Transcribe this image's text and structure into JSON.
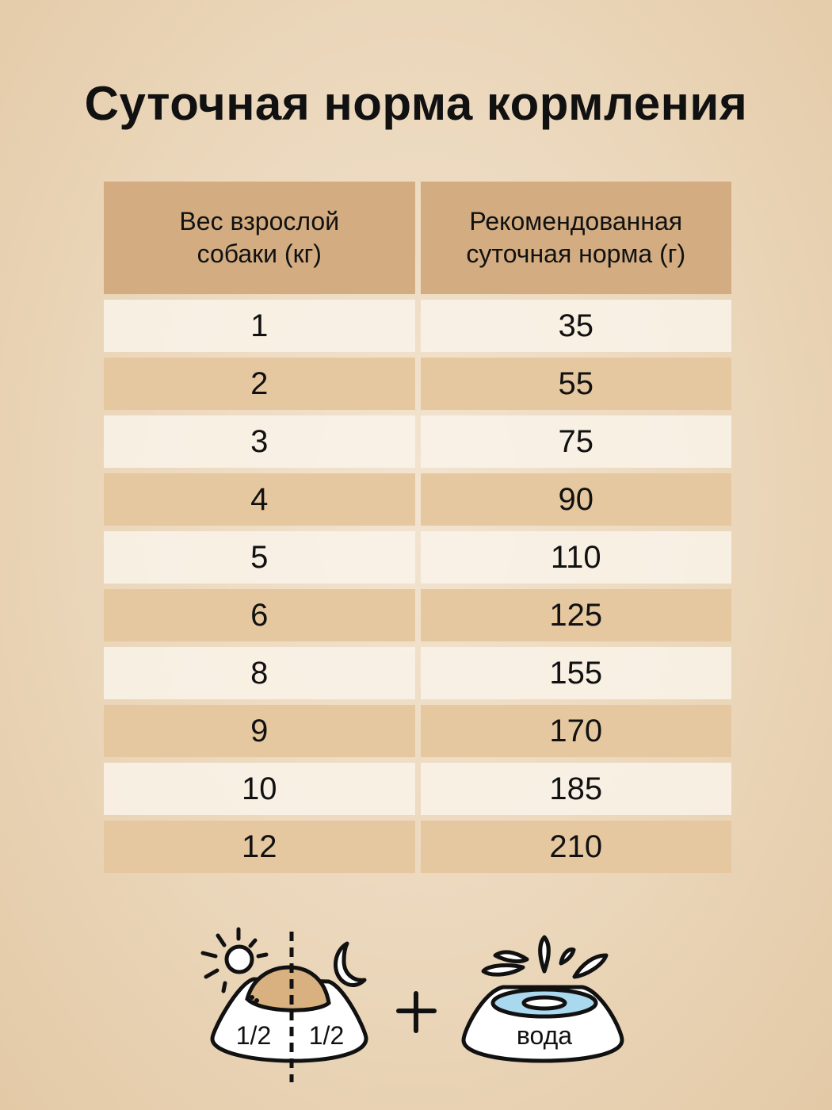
{
  "title": "Суточная норма кормления",
  "table": {
    "headers": [
      "Вес взрослой собаки (кг)",
      "Рекомендованная суточная норма (г)"
    ],
    "rows": [
      [
        "1",
        "35"
      ],
      [
        "2",
        "55"
      ],
      [
        "3",
        "75"
      ],
      [
        "4",
        "90"
      ],
      [
        "5",
        "110"
      ],
      [
        "6",
        "125"
      ],
      [
        "8",
        "155"
      ],
      [
        "9",
        "170"
      ],
      [
        "10",
        "185"
      ],
      [
        "12",
        "210"
      ]
    ]
  },
  "feeding": {
    "icons": [
      "sun-icon",
      "moon-icon",
      "food-bowl-icon",
      "plus-icon",
      "water-bowl-icon"
    ],
    "half_left": "1/2",
    "half_right": "1/2",
    "water_label": "вода"
  },
  "colors": {
    "header": "#d3ad81",
    "row_dark": "#e6c8a0",
    "row_light": "#faf3ea",
    "food": "#d9b07f",
    "water": "#a9d8ef"
  }
}
